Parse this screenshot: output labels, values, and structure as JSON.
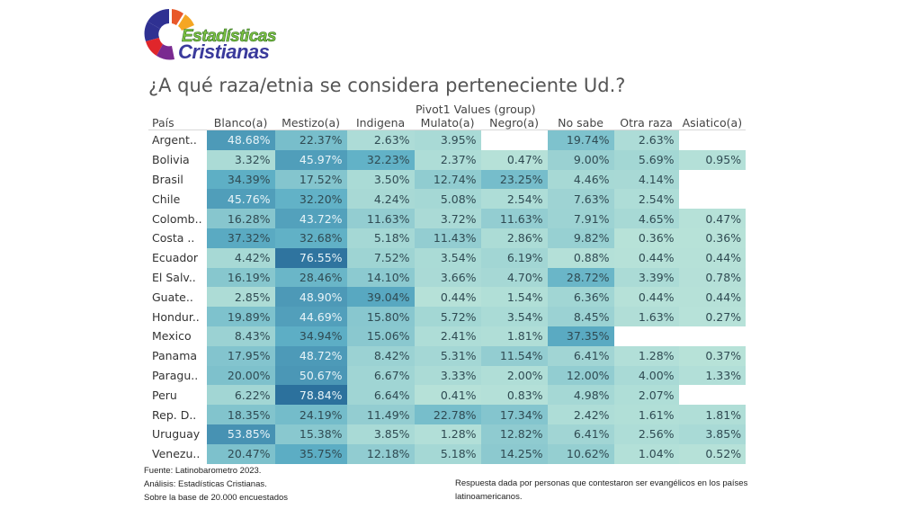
{
  "logo": {
    "line1": "Estadísticas",
    "line2": "Cristianas"
  },
  "title": "¿A qué raza/etnia se considera perteneciente Ud.?",
  "footer": {
    "source": "Fuente: Latinobarometro 2023.",
    "analysis": "Análisis: Estadísticas Cristianas.",
    "base": "Sobre la base de 20.000 encuestados",
    "note": "Respuesta dada por personas que contestaron ser evangélicos en los países latinoamericanos."
  },
  "colors": {
    "low": "#b9e3d9",
    "mid": "#5fb0c6",
    "high": "#2b6f9c"
  },
  "chart_data": {
    "type": "heatmap",
    "title": "¿A qué raza/etnia se considera perteneciente Ud.?",
    "row_header": "País",
    "column_group_header": "Pivot1 Values (group)",
    "columns": [
      "Blanco(a)",
      "Mestizo(a)",
      "Indigena",
      "Mulato(a)",
      "Negro(a)",
      "No sabe",
      "Otra raza",
      "Asiatico(a)"
    ],
    "rows": [
      "Argent..",
      "Bolivia",
      "Brasil",
      "Chile",
      "Colomb..",
      "Costa ..",
      "Ecuador",
      "El Salv..",
      "Guate..",
      "Hondur..",
      "Mexico",
      "Panama",
      "Paragu..",
      "Peru",
      "Rep. D..",
      "Uruguay",
      "Venezu.."
    ],
    "values": [
      [
        48.68,
        22.37,
        2.63,
        3.95,
        null,
        19.74,
        2.63,
        null
      ],
      [
        3.32,
        45.97,
        32.23,
        2.37,
        0.47,
        9.0,
        5.69,
        0.95
      ],
      [
        34.39,
        17.52,
        3.5,
        12.74,
        23.25,
        4.46,
        4.14,
        null
      ],
      [
        45.76,
        32.2,
        4.24,
        5.08,
        2.54,
        7.63,
        2.54,
        null
      ],
      [
        16.28,
        43.72,
        11.63,
        3.72,
        11.63,
        7.91,
        4.65,
        0.47
      ],
      [
        37.32,
        32.68,
        5.18,
        11.43,
        2.86,
        9.82,
        0.36,
        0.36
      ],
      [
        4.42,
        76.55,
        7.52,
        3.54,
        6.19,
        0.88,
        0.44,
        0.44
      ],
      [
        16.19,
        28.46,
        14.1,
        3.66,
        4.7,
        28.72,
        3.39,
        0.78
      ],
      [
        2.85,
        48.9,
        39.04,
        0.44,
        1.54,
        6.36,
        0.44,
        0.44
      ],
      [
        19.89,
        44.69,
        15.8,
        5.72,
        3.54,
        8.45,
        1.63,
        0.27
      ],
      [
        8.43,
        34.94,
        15.06,
        2.41,
        1.81,
        37.35,
        null,
        null
      ],
      [
        17.95,
        48.72,
        8.42,
        5.31,
        11.54,
        6.41,
        1.28,
        0.37
      ],
      [
        20.0,
        50.67,
        6.67,
        3.33,
        2.0,
        12.0,
        4.0,
        1.33
      ],
      [
        6.22,
        78.84,
        6.64,
        0.41,
        0.83,
        4.98,
        2.07,
        null
      ],
      [
        18.35,
        24.19,
        11.49,
        22.78,
        17.34,
        2.42,
        1.61,
        1.81
      ],
      [
        53.85,
        15.38,
        3.85,
        1.28,
        12.82,
        6.41,
        2.56,
        3.85
      ],
      [
        20.47,
        35.75,
        12.18,
        5.18,
        14.25,
        10.62,
        1.04,
        0.52
      ]
    ],
    "value_format": "percent, 2 decimals",
    "color_scale": "sequential teal-blue, light for low values, dark blue for high values"
  }
}
